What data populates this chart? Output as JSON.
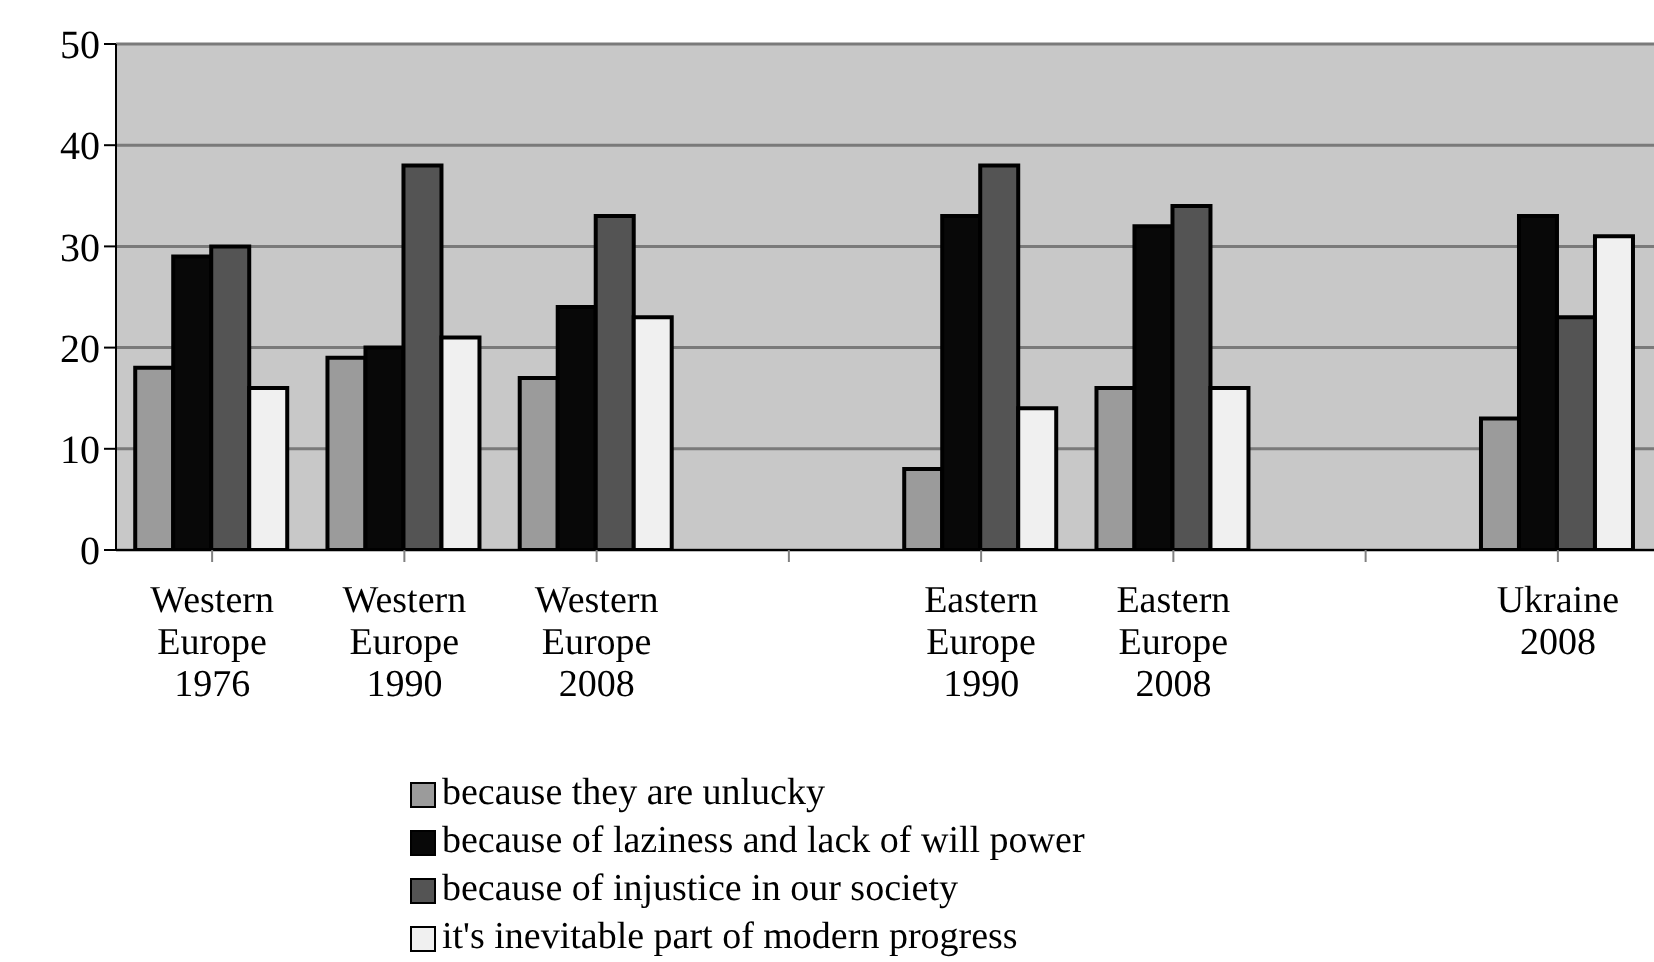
{
  "chart_data": {
    "type": "bar",
    "categories": [
      "Western Europe 1976",
      "Western Europe 1990",
      "Western Europe 2008",
      null,
      "Eastern Europe 1990",
      "Eastern Europe 2008",
      null,
      "Ukraine 2008"
    ],
    "series": [
      {
        "name": "because they are unlucky",
        "color": "#9b9b9b",
        "values": [
          18,
          19,
          17,
          null,
          8,
          16,
          null,
          13
        ]
      },
      {
        "name": "because of laziness and lack of will power",
        "color": "#080808",
        "values": [
          29,
          20,
          24,
          null,
          33,
          32,
          null,
          33
        ]
      },
      {
        "name": "because of injustice in our society",
        "color": "#545454",
        "values": [
          30,
          38,
          33,
          null,
          38,
          34,
          null,
          23
        ]
      },
      {
        "name": "it's inevitable part of modern progress",
        "color": "#f0f0f0",
        "values": [
          16,
          21,
          23,
          null,
          14,
          16,
          null,
          31
        ]
      }
    ],
    "ylim": [
      0,
      50
    ],
    "yticks": [
      0,
      10,
      20,
      30,
      40,
      50
    ],
    "grid": "y",
    "legend": "bottom"
  }
}
